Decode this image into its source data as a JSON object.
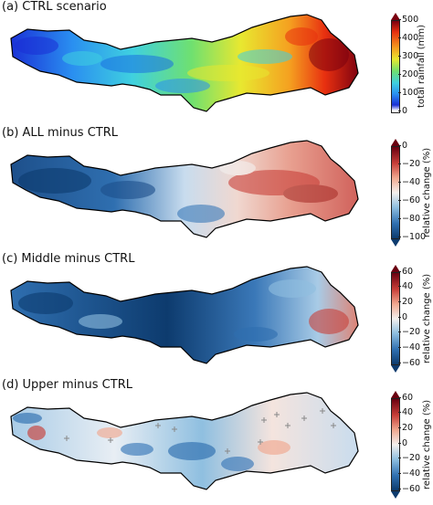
{
  "panels": [
    {
      "title": "(a) CTRL scenario",
      "colorbar_label": "total rainfall (mm)",
      "ticks": [
        "500",
        "400",
        "300",
        "200",
        "100",
        "0"
      ],
      "scale": "sequential-rainbow",
      "range": [
        0,
        500
      ]
    },
    {
      "title": "(b) ALL minus CTRL",
      "colorbar_label": "relative change (%)",
      "ticks": [
        "0",
        "−20",
        "−40",
        "−60",
        "−80",
        "−100"
      ],
      "scale": "diverging-red-blue",
      "range": [
        -100,
        0
      ]
    },
    {
      "title": "(c) Middle minus CTRL",
      "colorbar_label": "relative change (%)",
      "ticks": [
        "60",
        "40",
        "20",
        "0",
        "−20",
        "−40",
        "−60"
      ],
      "scale": "diverging-red-blue",
      "range": [
        -60,
        60
      ]
    },
    {
      "title": "(d) Upper minus CTRL",
      "colorbar_label": "relative change (%)",
      "ticks": [
        "60",
        "40",
        "20",
        "0",
        "−20",
        "−40",
        "−60"
      ],
      "scale": "diverging-red-blue",
      "range": [
        -60,
        60
      ]
    }
  ],
  "colors": {
    "rainbow": [
      "#1a2fd6",
      "#2a8ff0",
      "#3fd0e0",
      "#6fe070",
      "#e8e830",
      "#f5a020",
      "#e83010",
      "#7a0010"
    ],
    "diverging": [
      "#0d3b6e",
      "#2f6fb0",
      "#8fbfe0",
      "#f4f0ee",
      "#f0a890",
      "#c8403a",
      "#6a0010"
    ]
  }
}
